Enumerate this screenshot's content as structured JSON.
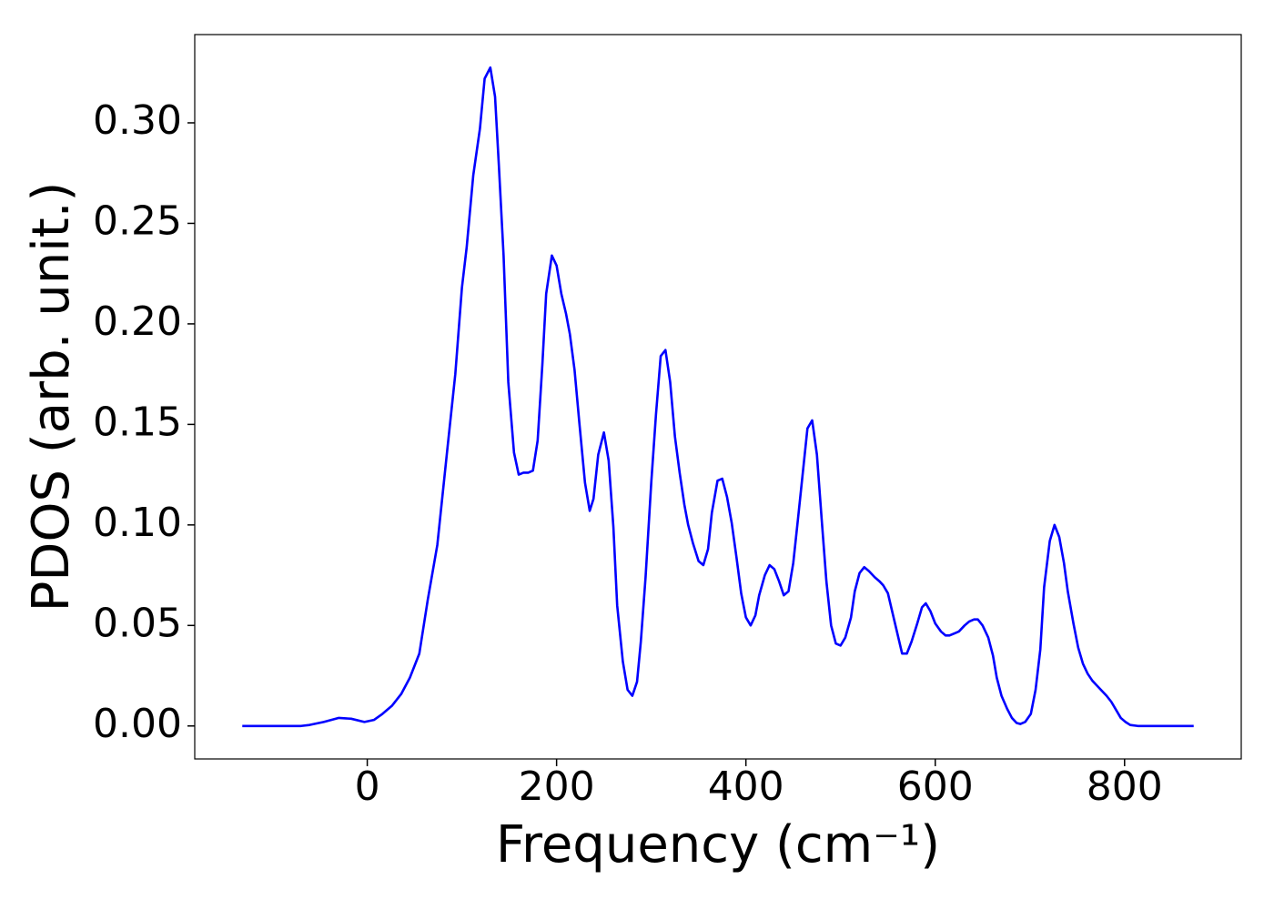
{
  "chart_data": {
    "type": "line",
    "xlabel": "Frequency (cm⁻¹)",
    "ylabel": "PDOS (arb. unit.)",
    "x": [
      -132,
      -100,
      -70,
      -61,
      -46,
      -30,
      -17,
      -3,
      7,
      16,
      26,
      36,
      45,
      55,
      64,
      74,
      84,
      93,
      100,
      105,
      112,
      119,
      124,
      130,
      135,
      139,
      144,
      149,
      155,
      160,
      165,
      170,
      175,
      180,
      185,
      189,
      195,
      200,
      205,
      210,
      214,
      219,
      224,
      230,
      235,
      239,
      244,
      250,
      255,
      260,
      264,
      270,
      275,
      280,
      285,
      289,
      294,
      300,
      305,
      310,
      315,
      320,
      325,
      330,
      335,
      339,
      344,
      350,
      355,
      360,
      364,
      370,
      375,
      380,
      385,
      390,
      395,
      400,
      405,
      410,
      414,
      420,
      425,
      430,
      435,
      440,
      445,
      450,
      455,
      461,
      465,
      470,
      475,
      480,
      485,
      490,
      495,
      500,
      505,
      511,
      515,
      520,
      525,
      530,
      536,
      541,
      545,
      550,
      555,
      561,
      565,
      570,
      575,
      581,
      586,
      590,
      595,
      600,
      606,
      611,
      615,
      620,
      625,
      631,
      636,
      641,
      645,
      650,
      656,
      661,
      665,
      670,
      676,
      681,
      686,
      690,
      695,
      701,
      706,
      711,
      715,
      721,
      726,
      731,
      736,
      740,
      746,
      751,
      756,
      761,
      766,
      771,
      776,
      781,
      786,
      791,
      796,
      801,
      806,
      814,
      873
    ],
    "series": [
      {
        "color": "#0000ff",
        "values": [
          0,
          0,
          0,
          0.0005,
          0.002,
          0.004,
          0.0036,
          0.002,
          0.003,
          0.006,
          0.01,
          0.016,
          0.024,
          0.036,
          0.063,
          0.09,
          0.135,
          0.175,
          0.218,
          0.238,
          0.274,
          0.297,
          0.322,
          0.3275,
          0.313,
          0.279,
          0.234,
          0.171,
          0.136,
          0.125,
          0.126,
          0.126,
          0.127,
          0.142,
          0.18,
          0.215,
          0.234,
          0.229,
          0.215,
          0.205,
          0.195,
          0.177,
          0.151,
          0.121,
          0.107,
          0.113,
          0.135,
          0.146,
          0.132,
          0.099,
          0.06,
          0.032,
          0.018,
          0.015,
          0.022,
          0.042,
          0.074,
          0.121,
          0.155,
          0.184,
          0.187,
          0.171,
          0.144,
          0.126,
          0.11,
          0.1,
          0.091,
          0.082,
          0.08,
          0.088,
          0.106,
          0.122,
          0.123,
          0.114,
          0.101,
          0.084,
          0.066,
          0.054,
          0.05,
          0.055,
          0.065,
          0.075,
          0.08,
          0.078,
          0.072,
          0.065,
          0.067,
          0.081,
          0.103,
          0.13,
          0.148,
          0.152,
          0.135,
          0.103,
          0.072,
          0.05,
          0.041,
          0.04,
          0.044,
          0.054,
          0.067,
          0.076,
          0.079,
          0.077,
          0.074,
          0.072,
          0.07,
          0.066,
          0.056,
          0.044,
          0.036,
          0.036,
          0.042,
          0.051,
          0.059,
          0.061,
          0.057,
          0.051,
          0.047,
          0.045,
          0.045,
          0.046,
          0.047,
          0.05,
          0.052,
          0.053,
          0.053,
          0.05,
          0.044,
          0.035,
          0.024,
          0.015,
          0.0085,
          0.004,
          0.0015,
          0.001,
          0.002,
          0.006,
          0.018,
          0.038,
          0.069,
          0.092,
          0.1,
          0.094,
          0.081,
          0.067,
          0.051,
          0.039,
          0.031,
          0.026,
          0.0225,
          0.02,
          0.0175,
          0.015,
          0.012,
          0.008,
          0.004,
          0.002,
          0.0005,
          0,
          0
        ]
      }
    ],
    "xlim": [
      -182.25,
      923.25
    ],
    "ylim": [
      -0.0164,
      0.3439
    ],
    "xticks": [
      0,
      200,
      400,
      600,
      800
    ],
    "yticks": [
      {
        "value": 0,
        "label": "0.00"
      },
      {
        "value": 0.05,
        "label": "0.05"
      },
      {
        "value": 0.1,
        "label": "0.10"
      },
      {
        "value": 0.15,
        "label": "0.15"
      },
      {
        "value": 0.2,
        "label": "0.20"
      },
      {
        "value": 0.25,
        "label": "0.25"
      },
      {
        "value": 0.3,
        "label": "0.30"
      }
    ]
  }
}
